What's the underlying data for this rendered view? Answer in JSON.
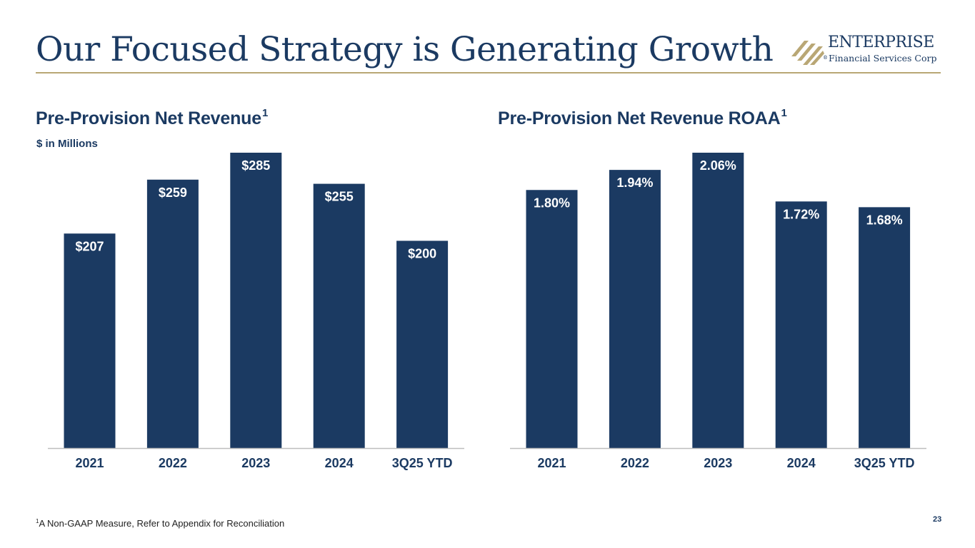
{
  "slide": {
    "title": "Our Focused Strategy is Generating Growth",
    "footnote_marker": "1",
    "footnote": "A Non-GAAP Measure, Refer to Appendix for Reconciliation",
    "page_number": "23"
  },
  "logo": {
    "name": "ENTERPRISE",
    "subtitle": "Financial Services Corp",
    "registered": "®"
  },
  "colors": {
    "bar": "#1b3a62",
    "accent_gold": "#b9a775",
    "text": "#1b3a62",
    "axis": "#bdbdbd"
  },
  "chart_data": [
    {
      "type": "bar",
      "title": "Pre-Provision Net Revenue",
      "title_superscript": "1",
      "subtitle": "$ in Millions",
      "categories": [
        "2021",
        "2022",
        "2023",
        "2024",
        "3Q25 YTD"
      ],
      "values": [
        207,
        259,
        285,
        255,
        200
      ],
      "labels": [
        "$207",
        "$259",
        "$285",
        "$255",
        "$200"
      ],
      "ylim": [
        0,
        285
      ],
      "xlabel": "",
      "ylabel": "",
      "grid": false,
      "legend": "none"
    },
    {
      "type": "bar",
      "title": "Pre-Provision Net Revenue ROAA",
      "title_superscript": "1",
      "categories": [
        "2021",
        "2022",
        "2023",
        "2024",
        "3Q25 YTD"
      ],
      "values": [
        1.8,
        1.94,
        2.06,
        1.72,
        1.68
      ],
      "labels": [
        "1.80%",
        "1.94%",
        "2.06%",
        "1.72%",
        "1.68%"
      ],
      "ylim": [
        0,
        2.06
      ],
      "xlabel": "",
      "ylabel": "",
      "grid": false,
      "legend": "none"
    }
  ]
}
